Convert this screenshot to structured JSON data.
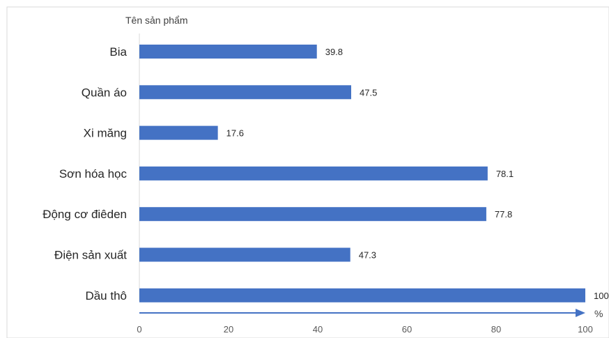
{
  "chart_data": {
    "type": "bar",
    "orientation": "horizontal",
    "categories": [
      "Bia",
      "Quần áo",
      "Xi măng",
      "Sơn hóa học",
      "Động cơ điêden",
      "Điện sản xuất",
      "Dầu thô"
    ],
    "values": [
      39.8,
      47.5,
      17.6,
      78.1,
      77.8,
      47.3,
      100
    ],
    "value_labels": [
      "39.8",
      "47.5",
      "17.6",
      "78.1",
      "77.8",
      "47.3",
      "100"
    ],
    "ylabel": "Tên sản phẩm",
    "xunit": "%",
    "xlim": [
      0,
      100
    ],
    "xticks": [
      "0",
      "20",
      "40",
      "60",
      "80",
      "100"
    ],
    "grid": false,
    "legend": "none",
    "bar_color": "#4472C4",
    "axis_color": "#4472C4"
  }
}
